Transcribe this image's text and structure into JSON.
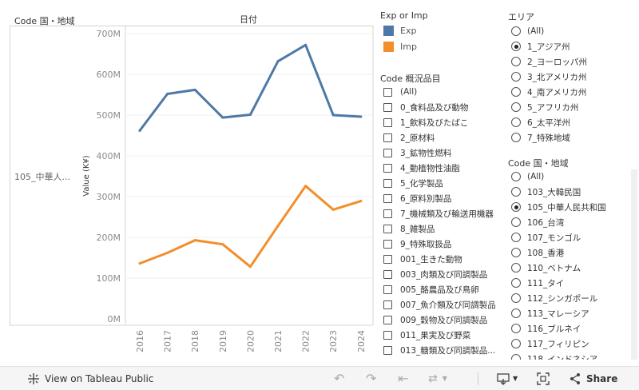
{
  "header": {
    "row_header": "Code 国・地域",
    "col_header": "日付",
    "row_value": "105_中華人..."
  },
  "chart_data": {
    "type": "line",
    "x": [
      "2016",
      "2017",
      "2018",
      "2019",
      "2020",
      "2021",
      "2022",
      "2023",
      "2024"
    ],
    "ylabel": "Value (K¥)",
    "yticks": [
      "0M",
      "100M",
      "200M",
      "300M",
      "400M",
      "500M",
      "600M",
      "700M"
    ],
    "ylim": [
      0,
      720
    ],
    "grid": true,
    "series": [
      {
        "name": "Exp",
        "color": "#4e79a7",
        "values": [
          462,
          552,
          562,
          494,
          501,
          632,
          672,
          500,
          496
        ]
      },
      {
        "name": "Imp",
        "color": "#f28e2b",
        "values": [
          136,
          162,
          193,
          183,
          128,
          228,
          326,
          268,
          289
        ]
      }
    ]
  },
  "legend": {
    "title": "Exp or Imp",
    "items": [
      {
        "label": "Exp",
        "color": "#4e79a7"
      },
      {
        "label": "Imp",
        "color": "#f28e2b"
      }
    ]
  },
  "filter_goods": {
    "title": "Code 概況品目",
    "items": [
      "(All)",
      "0_食料品及び動物",
      "1_飲料及びたばこ",
      "2_原材料",
      "3_鉱物性燃料",
      "4_動植物性油脂",
      "5_化学製品",
      "6_原料別製品",
      "7_機械類及び輸送用機器",
      "8_雑製品",
      "9_特殊取扱品",
      "001_生きた動物",
      "003_肉類及び同調製品",
      "005_酪農品及び鳥卵",
      "007_魚介類及び同調製品",
      "009_穀物及び同調製品",
      "011_果実及び野菜",
      "013_糖類及び同調製品..."
    ]
  },
  "filter_area": {
    "title": "エリア",
    "selected": 1,
    "items": [
      "(All)",
      "1_アジア州",
      "2_ヨーロッパ州",
      "3_北アメリカ州",
      "4_南アメリカ州",
      "5_アフリカ州",
      "6_太平洋州",
      "7_特殊地域"
    ]
  },
  "filter_country": {
    "title": "Code 国・地域",
    "selected": 2,
    "items": [
      "(All)",
      "103_大韓民国",
      "105_中華人民共和国",
      "106_台湾",
      "107_モンゴル",
      "108_香港",
      "110_ベトナム",
      "111_タイ",
      "112_シンガポール",
      "113_マレーシア",
      "116_ブルネイ",
      "117_フィリピン",
      "118_インドネシア"
    ]
  },
  "footer": {
    "view_label": "View on Tableau Public",
    "share_label": "Share"
  }
}
